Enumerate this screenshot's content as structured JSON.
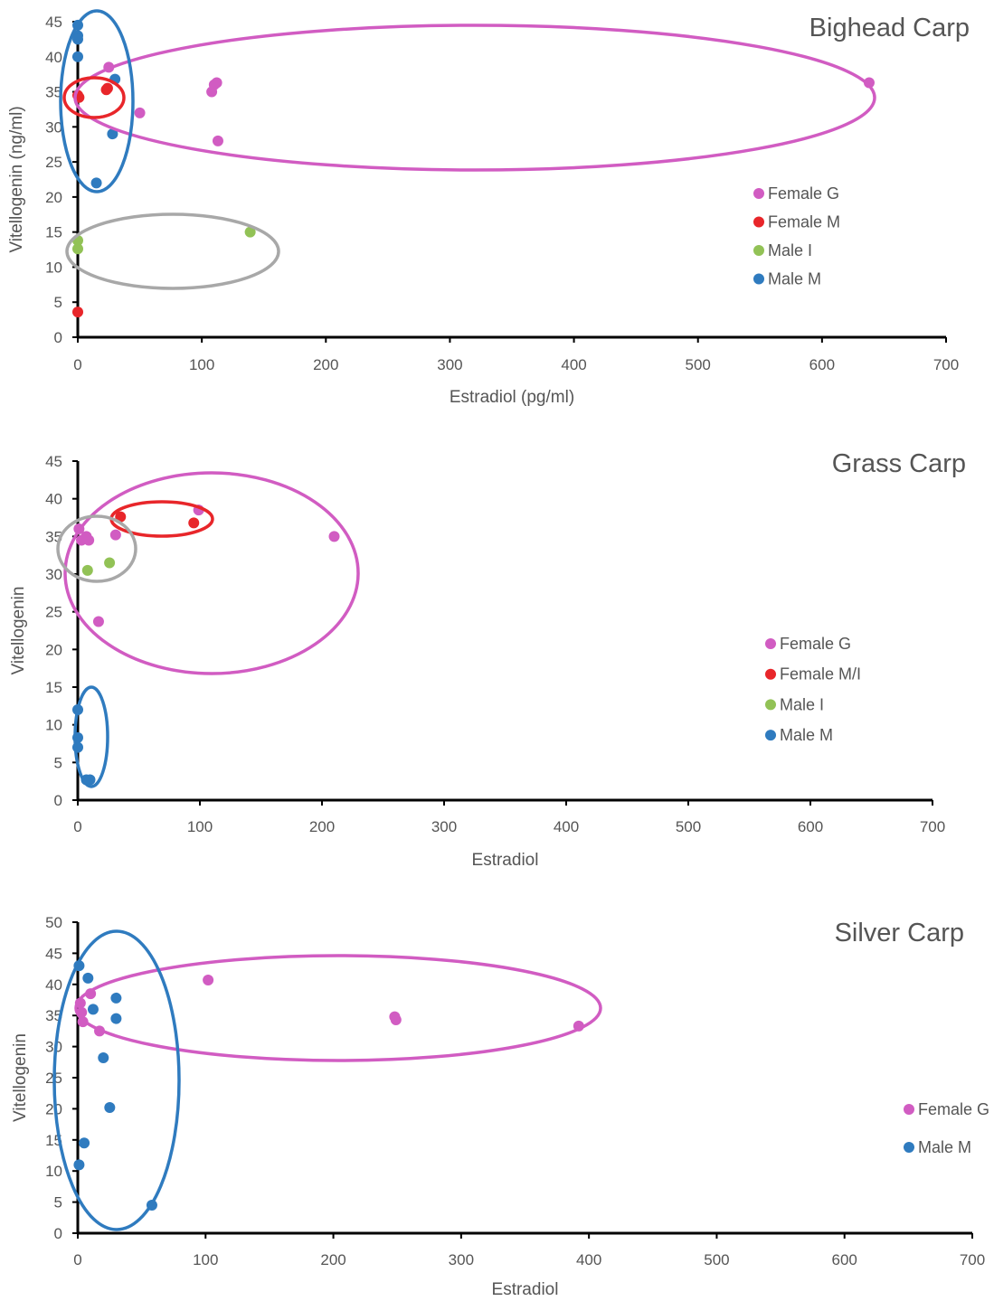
{
  "chart_data": [
    {
      "type": "scatter",
      "title": "Bighead Carp",
      "xlabel": "Estradiol (pg/ml)",
      "ylabel": "Vitellogenin (ng/ml)",
      "xlim": [
        0,
        700
      ],
      "ylim": [
        0,
        45
      ],
      "xticks": [
        "0",
        "100",
        "200",
        "300",
        "400",
        "500",
        "600",
        "700"
      ],
      "yticks": [
        "0",
        "5",
        "10",
        "15",
        "20",
        "25",
        "30",
        "35",
        "40",
        "45"
      ],
      "grid": false,
      "legend_position": "right",
      "series": [
        {
          "name": "Female G",
          "color": "#d15cc2",
          "points": [
            [
              25,
              38.5
            ],
            [
              50,
              32
            ],
            [
              108,
              35
            ],
            [
              110,
              36
            ],
            [
              112,
              36.3
            ],
            [
              113,
              28
            ],
            [
              638,
              36.3
            ]
          ]
        },
        {
          "name": "Female M",
          "color": "#e8262a",
          "points": [
            [
              0,
              34.5
            ],
            [
              1,
              34.2
            ],
            [
              23,
              35.3
            ],
            [
              24,
              35.5
            ],
            [
              0,
              3.6
            ]
          ]
        },
        {
          "name": "Male I",
          "color": "#92c256",
          "points": [
            [
              0,
              13.8
            ],
            [
              0,
              12.6
            ],
            [
              139,
              15
            ]
          ]
        },
        {
          "name": "Male M",
          "color": "#2f7bbf",
          "points": [
            [
              0,
              44.5
            ],
            [
              0,
              43
            ],
            [
              0,
              42.5
            ],
            [
              0,
              40
            ],
            [
              30,
              36.8
            ],
            [
              28,
              29
            ],
            [
              15,
              22
            ]
          ]
        }
      ]
    },
    {
      "type": "scatter",
      "title": "Grass Carp",
      "xlabel": "Estradiol",
      "ylabel": "Vitellogenin",
      "xlim": [
        0,
        700
      ],
      "ylim": [
        0,
        45
      ],
      "xticks": [
        "0",
        "100",
        "200",
        "300",
        "400",
        "500",
        "600",
        "700"
      ],
      "yticks": [
        "0",
        "5",
        "10",
        "15",
        "20",
        "25",
        "30",
        "35",
        "40",
        "45"
      ],
      "grid": false,
      "legend_position": "right",
      "series": [
        {
          "name": "Female G",
          "color": "#d15cc2",
          "points": [
            [
              1,
              36
            ],
            [
              3,
              34.5
            ],
            [
              7,
              35
            ],
            [
              9,
              34.5
            ],
            [
              31,
              35.2
            ],
            [
              17,
              23.7
            ],
            [
              99,
              38.5
            ],
            [
              210,
              35
            ]
          ]
        },
        {
          "name": "Female M/I",
          "color": "#e8262a",
          "points": [
            [
              35,
              37.6
            ],
            [
              95,
              36.8
            ]
          ]
        },
        {
          "name": "Male I",
          "color": "#92c256",
          "points": [
            [
              8,
              30.5
            ],
            [
              26,
              31.5
            ]
          ]
        },
        {
          "name": "Male M",
          "color": "#2f7bbf",
          "points": [
            [
              0,
              12
            ],
            [
              0,
              8.3
            ],
            [
              0,
              7
            ],
            [
              7,
              2.7
            ],
            [
              10,
              2.7
            ]
          ]
        }
      ]
    },
    {
      "type": "scatter",
      "title": "Silver Carp",
      "xlabel": "Estradiol",
      "ylabel": "Vitellogenin",
      "xlim": [
        0,
        700
      ],
      "ylim": [
        0,
        50
      ],
      "xticks": [
        "0",
        "100",
        "200",
        "300",
        "400",
        "500",
        "600",
        "700"
      ],
      "yticks": [
        "0",
        "5",
        "10",
        "15",
        "20",
        "25",
        "30",
        "35",
        "40",
        "45",
        "50"
      ],
      "grid": false,
      "legend_position": "right",
      "series": [
        {
          "name": "Female G",
          "color": "#d15cc2",
          "points": [
            [
              2,
              37
            ],
            [
              3,
              35.5
            ],
            [
              4,
              34
            ],
            [
              10,
              38.5
            ],
            [
              17,
              32.5
            ],
            [
              102,
              40.7
            ],
            [
              248,
              34.8
            ],
            [
              249,
              34.3
            ],
            [
              392,
              33.3
            ]
          ]
        },
        {
          "name": "Male M",
          "color": "#2f7bbf",
          "points": [
            [
              1,
              43
            ],
            [
              8,
              41
            ],
            [
              12,
              36
            ],
            [
              30,
              37.8
            ],
            [
              30,
              34.5
            ],
            [
              20,
              28.2
            ],
            [
              25,
              20.2
            ],
            [
              5,
              14.5
            ],
            [
              1,
              11
            ],
            [
              58,
              4.5
            ]
          ]
        }
      ]
    }
  ]
}
